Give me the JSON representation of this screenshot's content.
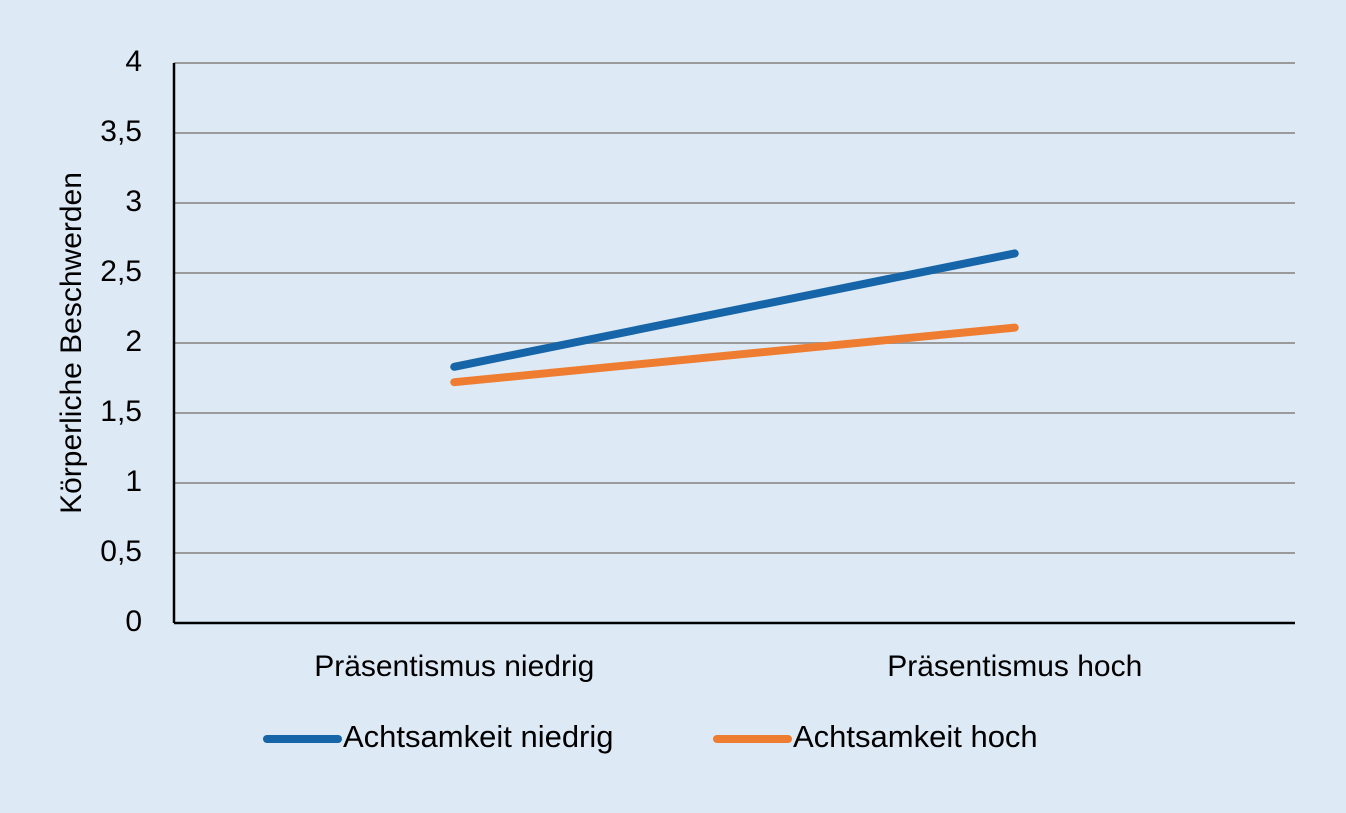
{
  "chart_data": {
    "type": "line",
    "title": "",
    "xlabel": "",
    "ylabel": "Körperliche Beschwerden",
    "categories": [
      "Präsentismus niedrig",
      "Präsentismus hoch"
    ],
    "series": [
      {
        "name": "Achtsamkeit niedrig",
        "values": [
          1.83,
          2.64
        ],
        "color": "#1665a8"
      },
      {
        "name": "Achtsamkeit hoch",
        "values": [
          1.72,
          2.11
        ],
        "color": "#ee7d31"
      }
    ],
    "ylim": [
      0,
      4
    ],
    "yticks": [
      "0",
      "0,5",
      "1",
      "1,5",
      "2",
      "2,5",
      "3",
      "3,5",
      "4"
    ],
    "grid": true,
    "legend_position": "bottom",
    "colors": {
      "background": "#ddeaf6",
      "grid": "#9a9a9a",
      "axis": "#000000"
    }
  }
}
